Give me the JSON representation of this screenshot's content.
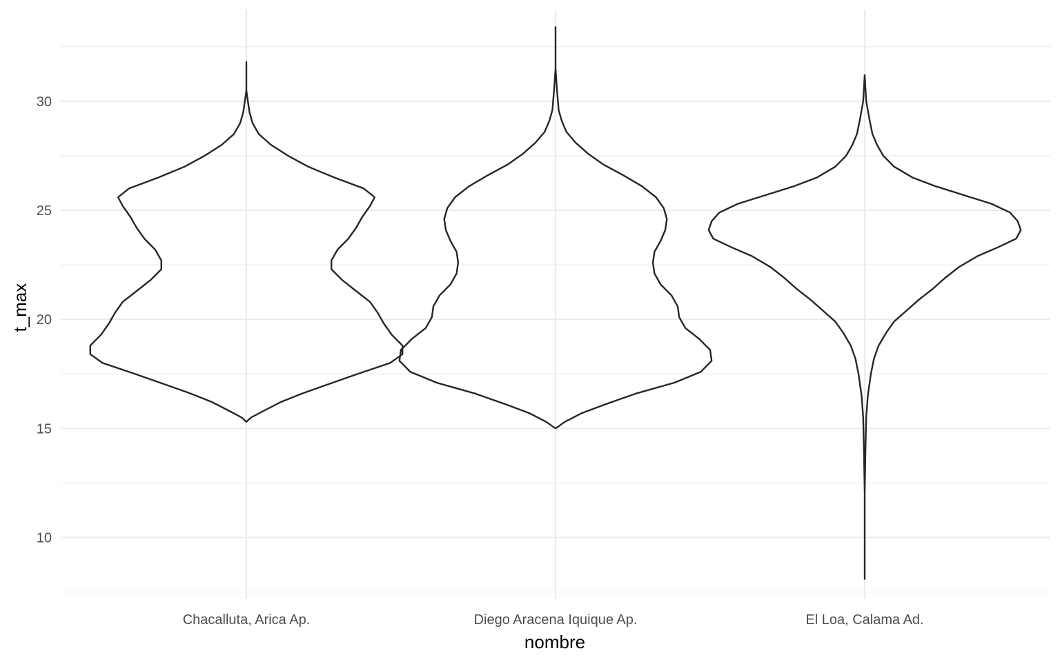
{
  "chart_data": {
    "type": "violin",
    "xlabel": "nombre",
    "ylabel": "t_max",
    "categories": [
      "Chacalluta, Arica Ap.",
      "Diego Aracena Iquique Ap.",
      "El Loa, Calama Ad."
    ],
    "ylim": [
      7.2,
      34.2
    ],
    "yticks": [
      10,
      15,
      20,
      25,
      30
    ],
    "yticks_minor": [
      7.5,
      12.5,
      17.5,
      22.5,
      27.5,
      32.5
    ],
    "grid": true,
    "series": [
      {
        "category": "Chacalluta, Arica Ap.",
        "profile": [
          [
            15.3,
            0.0
          ],
          [
            15.5,
            0.03
          ],
          [
            15.8,
            0.11
          ],
          [
            16.2,
            0.22
          ],
          [
            16.6,
            0.36
          ],
          [
            17.0,
            0.52
          ],
          [
            17.5,
            0.72
          ],
          [
            18.0,
            0.93
          ],
          [
            18.4,
            1.01
          ],
          [
            18.8,
            1.01
          ],
          [
            19.3,
            0.94
          ],
          [
            19.8,
            0.89
          ],
          [
            20.3,
            0.85
          ],
          [
            20.8,
            0.8
          ],
          [
            21.3,
            0.71
          ],
          [
            21.8,
            0.62
          ],
          [
            22.3,
            0.55
          ],
          [
            22.7,
            0.55
          ],
          [
            23.2,
            0.59
          ],
          [
            23.7,
            0.66
          ],
          [
            24.2,
            0.71
          ],
          [
            24.7,
            0.75
          ],
          [
            25.2,
            0.8
          ],
          [
            25.6,
            0.83
          ],
          [
            26.0,
            0.76
          ],
          [
            26.5,
            0.57
          ],
          [
            27.0,
            0.4
          ],
          [
            27.5,
            0.27
          ],
          [
            28.0,
            0.16
          ],
          [
            28.5,
            0.08
          ],
          [
            29.0,
            0.04
          ],
          [
            29.5,
            0.02
          ],
          [
            30.0,
            0.01
          ],
          [
            30.5,
            0.0
          ],
          [
            31.8,
            0.0
          ]
        ]
      },
      {
        "category": "Diego Aracena Iquique Ap.",
        "profile": [
          [
            15.0,
            0.0
          ],
          [
            15.3,
            0.06
          ],
          [
            15.7,
            0.17
          ],
          [
            16.1,
            0.32
          ],
          [
            16.6,
            0.52
          ],
          [
            17.1,
            0.77
          ],
          [
            17.6,
            0.94
          ],
          [
            18.1,
            1.01
          ],
          [
            18.6,
            1.0
          ],
          [
            19.1,
            0.93
          ],
          [
            19.6,
            0.84
          ],
          [
            20.1,
            0.8
          ],
          [
            20.6,
            0.79
          ],
          [
            21.1,
            0.75
          ],
          [
            21.6,
            0.68
          ],
          [
            22.1,
            0.64
          ],
          [
            22.6,
            0.63
          ],
          [
            23.1,
            0.64
          ],
          [
            23.6,
            0.68
          ],
          [
            24.1,
            0.71
          ],
          [
            24.6,
            0.72
          ],
          [
            25.1,
            0.7
          ],
          [
            25.6,
            0.65
          ],
          [
            26.1,
            0.56
          ],
          [
            26.6,
            0.44
          ],
          [
            27.1,
            0.31
          ],
          [
            27.6,
            0.21
          ],
          [
            28.1,
            0.13
          ],
          [
            28.6,
            0.07
          ],
          [
            29.1,
            0.04
          ],
          [
            29.6,
            0.02
          ],
          [
            30.5,
            0.01
          ],
          [
            31.5,
            0.0
          ],
          [
            33.4,
            0.0
          ]
        ]
      },
      {
        "category": "El Loa, Calama Ad.",
        "profile": [
          [
            8.1,
            0.0
          ],
          [
            12.0,
            0.0
          ],
          [
            14.0,
            0.005
          ],
          [
            15.5,
            0.01
          ],
          [
            16.5,
            0.02
          ],
          [
            17.5,
            0.04
          ],
          [
            18.2,
            0.06
          ],
          [
            18.8,
            0.09
          ],
          [
            19.4,
            0.14
          ],
          [
            19.9,
            0.19
          ],
          [
            20.4,
            0.27
          ],
          [
            20.9,
            0.35
          ],
          [
            21.4,
            0.44
          ],
          [
            21.9,
            0.52
          ],
          [
            22.4,
            0.61
          ],
          [
            22.9,
            0.73
          ],
          [
            23.3,
            0.86
          ],
          [
            23.7,
            0.98
          ],
          [
            24.1,
            1.01
          ],
          [
            24.5,
            0.99
          ],
          [
            24.9,
            0.94
          ],
          [
            25.3,
            0.82
          ],
          [
            25.7,
            0.64
          ],
          [
            26.1,
            0.46
          ],
          [
            26.5,
            0.31
          ],
          [
            27.0,
            0.19
          ],
          [
            27.5,
            0.12
          ],
          [
            28.0,
            0.08
          ],
          [
            28.5,
            0.05
          ],
          [
            29.2,
            0.03
          ],
          [
            30.0,
            0.01
          ],
          [
            31.2,
            0.0
          ]
        ]
      }
    ]
  }
}
